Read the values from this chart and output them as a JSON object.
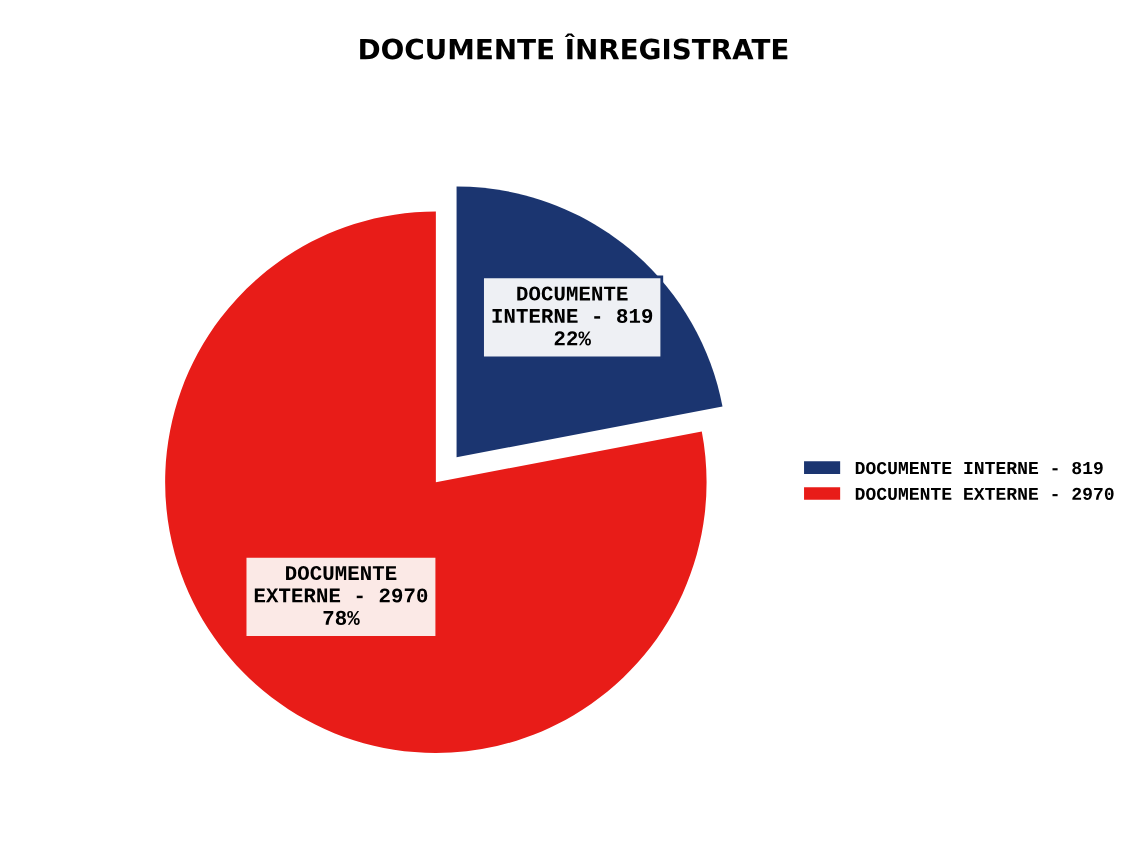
{
  "chart_data": {
    "type": "pie",
    "title": "DOCUMENTE ÎNREGISTRATE",
    "categories": [
      "DOCUMENTE INTERNE - 819",
      "DOCUMENTE EXTERNE - 2970"
    ],
    "values": [
      22,
      78
    ],
    "value_labels": [
      "22%",
      "78%"
    ],
    "colors": [
      "#1b3570",
      "#e81c18"
    ],
    "legend": "right"
  }
}
